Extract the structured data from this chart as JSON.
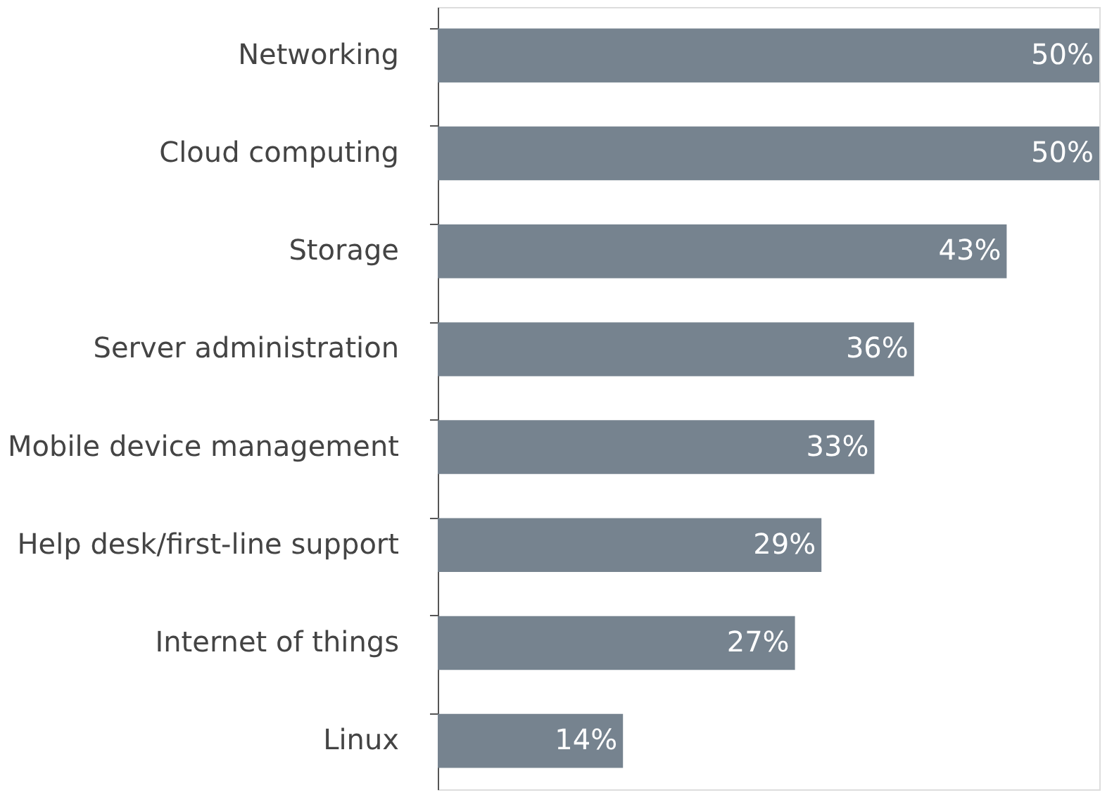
{
  "chart_data": {
    "type": "bar",
    "orientation": "horizontal",
    "categories": [
      "Networking",
      "Cloud computing",
      "Storage",
      "Server administration",
      "Mobile device management",
      "Help desk/first-line support",
      "Internet of things",
      "Linux"
    ],
    "values": [
      50,
      50,
      43,
      36,
      33,
      29,
      27,
      14
    ],
    "value_labels": [
      "50%",
      "50%",
      "43%",
      "36%",
      "33%",
      "29%",
      "27%",
      "14%"
    ],
    "color": "#76838f"
  }
}
